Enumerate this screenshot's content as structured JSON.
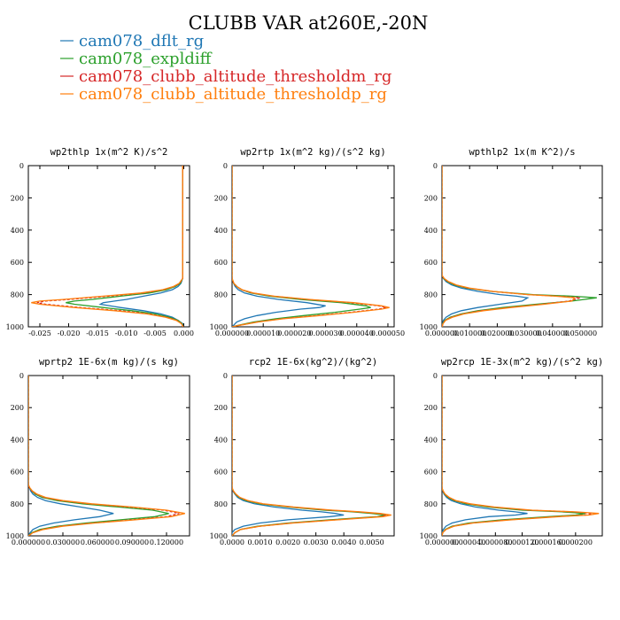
{
  "figure": {
    "title": "CLUBB VAR at260E,-20N",
    "legend": [
      {
        "name": "cam078_dflt_rg",
        "color": "#1f77b4"
      },
      {
        "name": "cam078_expldiff",
        "color": "#2ca02c"
      },
      {
        "name": "cam078_clubb_altitude_thresholdm_rg",
        "color": "#d62728"
      },
      {
        "name": "cam078_clubb_altitude_thresholdp_rg",
        "color": "#ff7f0e"
      }
    ]
  },
  "chart_data": [
    {
      "type": "line",
      "title": "wp2thlp  1x(m^2 K)/s^2",
      "xlim": [
        -0.027,
        0.001
      ],
      "ylim": [
        1000,
        0
      ],
      "x_ticks": [
        "-0.025",
        "-0.020",
        "-0.015",
        "-0.010",
        "-0.005",
        "0.000"
      ],
      "x_tick_values": [
        -0.025,
        -0.02,
        -0.015,
        -0.01,
        -0.005,
        0.0
      ],
      "y_ticks": [
        "0",
        "200",
        "400",
        "600",
        "800",
        "1000"
      ],
      "y": [
        0,
        700,
        730,
        750,
        770,
        790,
        810,
        830,
        840,
        850,
        860,
        880,
        900,
        920,
        940,
        960,
        980,
        1000
      ],
      "series": [
        {
          "name": "cam078_dflt_rg",
          "color": "#1f77b4",
          "x": [
            -0.0002,
            -0.0002,
            -0.0005,
            -0.001,
            -0.002,
            -0.004,
            -0.007,
            -0.01,
            -0.012,
            -0.014,
            -0.0145,
            -0.011,
            -0.007,
            -0.004,
            -0.002,
            -0.001,
            -0.0002,
            -0.0001
          ]
        },
        {
          "name": "cam078_expldiff",
          "color": "#2ca02c",
          "x": [
            -0.0002,
            -0.0002,
            -0.0006,
            -0.0015,
            -0.003,
            -0.006,
            -0.011,
            -0.016,
            -0.019,
            -0.0205,
            -0.019,
            -0.014,
            -0.009,
            -0.005,
            -0.0025,
            -0.001,
            -0.0003,
            -0.0001
          ]
        },
        {
          "name": "cam078_clubb_altitude_thresholdm_rg",
          "color": "#d62728",
          "dash": "3,2",
          "x": [
            -0.0002,
            -0.0002,
            -0.0007,
            -0.0017,
            -0.0035,
            -0.007,
            -0.013,
            -0.02,
            -0.024,
            -0.0255,
            -0.024,
            -0.018,
            -0.011,
            -0.006,
            -0.003,
            -0.0012,
            -0.0004,
            -0.0001
          ]
        },
        {
          "name": "cam078_clubb_altitude_thresholdp_rg",
          "color": "#ff7f0e",
          "x": [
            -0.0002,
            -0.0002,
            -0.0008,
            -0.0018,
            -0.0037,
            -0.0075,
            -0.014,
            -0.021,
            -0.025,
            -0.0265,
            -0.025,
            -0.019,
            -0.012,
            -0.0065,
            -0.0032,
            -0.0013,
            -0.0004,
            -0.0001
          ]
        }
      ]
    },
    {
      "type": "line",
      "title": "wp2rtp  1x(m^2 kg)/(s^2 kg)",
      "xlim": [
        0,
        5.2e-05
      ],
      "ylim": [
        1000,
        0
      ],
      "x_ticks": [
        "0.000000",
        "0.000010",
        "0.000020",
        "0.000030",
        "0.000040",
        "0.000050"
      ],
      "x_tick_values": [
        0,
        1e-05,
        2e-05,
        3e-05,
        4e-05,
        5e-05
      ],
      "y_ticks": [
        "0",
        "200",
        "400",
        "600",
        "800",
        "1000"
      ],
      "y": [
        0,
        700,
        730,
        750,
        770,
        790,
        810,
        830,
        850,
        870,
        880,
        890,
        910,
        930,
        950,
        970,
        990,
        1000
      ],
      "series": [
        {
          "name": "cam078_dflt_rg",
          "color": "#1f77b4",
          "x": [
            0,
            0,
            5e-07,
            1e-06,
            2e-06,
            4e-06,
            8e-06,
            1.5e-05,
            2.4e-05,
            3e-05,
            2.8e-05,
            2.2e-05,
            1.4e-05,
            8e-06,
            4e-06,
            1.5e-06,
            5e-07,
            0
          ]
        },
        {
          "name": "cam078_expldiff",
          "color": "#2ca02c",
          "x": [
            0,
            0,
            5e-07,
            1.5e-06,
            3e-06,
            6e-06,
            1.2e-05,
            2.2e-05,
            3.5e-05,
            4.3e-05,
            4.45e-05,
            4.1e-05,
            3.3e-05,
            2.3e-05,
            1.4e-05,
            7e-06,
            2e-06,
            0
          ]
        },
        {
          "name": "cam078_clubb_altitude_thresholdm_rg",
          "color": "#d62728",
          "dash": "3,2",
          "x": [
            0,
            0,
            5e-07,
            1.5e-06,
            3e-06,
            6.5e-06,
            1.3e-05,
            2.4e-05,
            3.8e-05,
            4.7e-05,
            4.95e-05,
            4.7e-05,
            3.8e-05,
            2.7e-05,
            1.6e-05,
            8e-06,
            2.5e-06,
            0
          ]
        },
        {
          "name": "cam078_clubb_altitude_thresholdp_rg",
          "color": "#ff7f0e",
          "x": [
            0,
            0,
            6e-07,
            1.6e-06,
            3.2e-06,
            6.8e-06,
            1.35e-05,
            2.5e-05,
            3.9e-05,
            4.8e-05,
            5.05e-05,
            4.8e-05,
            3.9e-05,
            2.8e-05,
            1.65e-05,
            8.5e-06,
            2.5e-06,
            0
          ]
        }
      ]
    },
    {
      "type": "line",
      "title": "wpthlp2  1x(m K^2)/s",
      "xlim": [
        0,
        0.058
      ],
      "ylim": [
        1000,
        0
      ],
      "x_ticks": [
        "0.000000",
        "0.010000",
        "0.020000",
        "0.030000",
        "0.040000",
        "0.050000"
      ],
      "x_tick_values": [
        0,
        0.01,
        0.02,
        0.03,
        0.04,
        0.05
      ],
      "y_ticks": [
        "0",
        "200",
        "400",
        "600",
        "800",
        "1000"
      ],
      "y": [
        0,
        680,
        700,
        720,
        740,
        760,
        780,
        800,
        810,
        820,
        840,
        860,
        880,
        900,
        920,
        940,
        960,
        980,
        1000
      ],
      "series": [
        {
          "name": "cam078_dflt_rg",
          "color": "#1f77b4",
          "x": [
            0,
            0,
            0.0005,
            0.0015,
            0.0035,
            0.007,
            0.013,
            0.021,
            0.027,
            0.031,
            0.029,
            0.021,
            0.013,
            0.007,
            0.0035,
            0.0015,
            0.0005,
            0.0002,
            0
          ]
        },
        {
          "name": "cam078_expldiff",
          "color": "#2ca02c",
          "x": [
            0,
            0,
            0.0006,
            0.002,
            0.0045,
            0.009,
            0.018,
            0.033,
            0.047,
            0.056,
            0.047,
            0.034,
            0.022,
            0.013,
            0.007,
            0.003,
            0.001,
            0.0003,
            0
          ]
        },
        {
          "name": "cam078_clubb_altitude_thresholdm_rg",
          "color": "#d62728",
          "dash": "3,2",
          "x": [
            0,
            0,
            0.0007,
            0.0022,
            0.005,
            0.0095,
            0.018,
            0.031,
            0.042,
            0.05,
            0.046,
            0.036,
            0.024,
            0.014,
            0.0075,
            0.0035,
            0.0012,
            0.0004,
            0
          ]
        },
        {
          "name": "cam078_clubb_altitude_thresholdp_rg",
          "color": "#ff7f0e",
          "x": [
            0,
            0,
            0.0008,
            0.0024,
            0.0052,
            0.01,
            0.0185,
            0.031,
            0.041,
            0.048,
            0.047,
            0.037,
            0.025,
            0.015,
            0.008,
            0.0038,
            0.0013,
            0.0004,
            0
          ]
        }
      ]
    },
    {
      "type": "line",
      "title": "wprtp2  1E-6x(m kg)/(s kg)",
      "xlim": [
        0,
        0.14
      ],
      "ylim": [
        1000,
        0
      ],
      "x_ticks": [
        "0.000000",
        "0.030000",
        "0.060000",
        "0.090000",
        "0.120000"
      ],
      "x_tick_values": [
        0,
        0.03,
        0.06,
        0.09,
        0.12
      ],
      "y_ticks": [
        "0",
        "200",
        "400",
        "600",
        "800",
        "1000"
      ],
      "y": [
        0,
        680,
        700,
        720,
        740,
        760,
        780,
        800,
        820,
        840,
        860,
        880,
        900,
        920,
        940,
        960,
        980,
        1000
      ],
      "series": [
        {
          "name": "cam078_dflt_rg",
          "color": "#1f77b4",
          "x": [
            0,
            0,
            0.001,
            0.002,
            0.004,
            0.008,
            0.015,
            0.028,
            0.045,
            0.062,
            0.074,
            0.062,
            0.04,
            0.022,
            0.01,
            0.004,
            0.0015,
            0
          ]
        },
        {
          "name": "cam078_expldiff",
          "color": "#2ca02c",
          "x": [
            0,
            0,
            0.001,
            0.003,
            0.006,
            0.012,
            0.025,
            0.047,
            0.078,
            0.108,
            0.122,
            0.11,
            0.08,
            0.05,
            0.025,
            0.01,
            0.003,
            0
          ]
        },
        {
          "name": "cam078_clubb_altitude_thresholdm_rg",
          "color": "#d62728",
          "dash": "3,2",
          "x": [
            0,
            0,
            0.001,
            0.003,
            0.007,
            0.014,
            0.028,
            0.052,
            0.087,
            0.118,
            0.131,
            0.12,
            0.09,
            0.056,
            0.028,
            0.012,
            0.004,
            0
          ]
        },
        {
          "name": "cam078_clubb_altitude_thresholdp_rg",
          "color": "#ff7f0e",
          "x": [
            0,
            0,
            0.0012,
            0.0035,
            0.0075,
            0.015,
            0.03,
            0.055,
            0.09,
            0.12,
            0.136,
            0.124,
            0.093,
            0.058,
            0.03,
            0.013,
            0.004,
            0
          ]
        }
      ]
    },
    {
      "type": "line",
      "title": "rcp2  1E-6x(kg^2)/(kg^2)",
      "xlim": [
        0,
        0.0058
      ],
      "ylim": [
        1000,
        0
      ],
      "x_ticks": [
        "0.0000",
        "0.0010",
        "0.0020",
        "0.0030",
        "0.0040",
        "0.0050"
      ],
      "x_tick_values": [
        0,
        0.001,
        0.002,
        0.003,
        0.004,
        0.005
      ],
      "y_ticks": [
        "0",
        "200",
        "400",
        "600",
        "800",
        "1000"
      ],
      "y": [
        0,
        700,
        720,
        740,
        760,
        780,
        800,
        820,
        840,
        850,
        860,
        870,
        880,
        900,
        920,
        940,
        960,
        980,
        1000
      ],
      "series": [
        {
          "name": "cam078_dflt_rg",
          "color": "#1f77b4",
          "x": [
            0,
            0,
            3e-05,
            0.0001,
            0.0002,
            0.0004,
            0.0008,
            0.0015,
            0.0025,
            0.0032,
            0.0037,
            0.004,
            0.0035,
            0.002,
            0.001,
            0.0004,
            0.0001,
            0,
            0
          ]
        },
        {
          "name": "cam078_expldiff",
          "color": "#2ca02c",
          "x": [
            0,
            0,
            4e-05,
            0.00012,
            0.00025,
            0.0005,
            0.001,
            0.002,
            0.0033,
            0.0043,
            0.005,
            0.0055,
            0.0052,
            0.0035,
            0.002,
            0.0009,
            0.0003,
            0.0001,
            0
          ]
        },
        {
          "name": "cam078_clubb_altitude_thresholdm_rg",
          "color": "#d62728",
          "dash": "3,2",
          "x": [
            0,
            0,
            4e-05,
            0.00013,
            0.00027,
            0.00055,
            0.0011,
            0.0021,
            0.0035,
            0.0045,
            0.0052,
            0.0056,
            0.0053,
            0.0037,
            0.0021,
            0.001,
            0.0003,
            0.0001,
            0
          ]
        },
        {
          "name": "cam078_clubb_altitude_thresholdp_rg",
          "color": "#ff7f0e",
          "x": [
            0,
            0,
            5e-05,
            0.00014,
            0.00028,
            0.00057,
            0.0011,
            0.0022,
            0.0036,
            0.0046,
            0.0053,
            0.0057,
            0.0054,
            0.0038,
            0.0022,
            0.001,
            0.0003,
            0.0001,
            0
          ]
        }
      ]
    },
    {
      "type": "line",
      "title": "wp2rcp  1E-3x(m^2 kg)/(s^2 kg)",
      "xlim": [
        0,
        0.00024
      ],
      "ylim": [
        1000,
        0
      ],
      "x_ticks": [
        "0.000000",
        "0.000040",
        "0.000080",
        "0.000120",
        "0.000160",
        "0.000200"
      ],
      "x_tick_values": [
        0,
        4e-05,
        8e-05,
        0.00012,
        0.00016,
        0.0002
      ],
      "y_ticks": [
        "0",
        "200",
        "400",
        "600",
        "800",
        "1000"
      ],
      "y": [
        0,
        700,
        720,
        740,
        760,
        780,
        800,
        820,
        840,
        850,
        860,
        870,
        880,
        900,
        920,
        940,
        960,
        980,
        1000
      ],
      "series": [
        {
          "name": "cam078_dflt_rg",
          "color": "#1f77b4",
          "x": [
            0,
            0,
            1e-06,
            3e-06,
            7e-06,
            1.4e-05,
            2.8e-05,
            5e-05,
            8.5e-05,
            0.00011,
            0.000128,
            0.00011,
            7e-05,
            3.5e-05,
            1.5e-05,
            6e-06,
            2e-06,
            0,
            0
          ]
        },
        {
          "name": "cam078_expldiff",
          "color": "#2ca02c",
          "x": [
            0,
            0,
            1.5e-06,
            4e-06,
            9e-06,
            1.8e-05,
            3.6e-05,
            6.8e-05,
            0.00012,
            0.00018,
            0.000215,
            0.0002,
            0.00016,
            9e-05,
            4e-05,
            1.5e-05,
            5e-06,
            1e-06,
            0
          ]
        },
        {
          "name": "cam078_clubb_altitude_thresholdm_rg",
          "color": "#d62728",
          "dash": "3,2",
          "x": [
            0,
            0,
            1.6e-06,
            4.5e-06,
            1e-05,
            2e-05,
            4e-05,
            7.5e-05,
            0.00013,
            0.000195,
            0.000228,
            0.000215,
            0.00017,
            0.0001,
            4.5e-05,
            1.7e-05,
            6e-06,
            1e-06,
            0
          ]
        },
        {
          "name": "cam078_clubb_altitude_thresholdp_rg",
          "color": "#ff7f0e",
          "x": [
            0,
            0,
            1.7e-06,
            4.8e-06,
            1.1e-05,
            2.1e-05,
            4.2e-05,
            7.8e-05,
            0.000135,
            0.0002,
            0.000235,
            0.00022,
            0.000175,
            0.000105,
            4.7e-05,
            1.8e-05,
            6e-06,
            1e-06,
            0
          ]
        }
      ]
    }
  ]
}
